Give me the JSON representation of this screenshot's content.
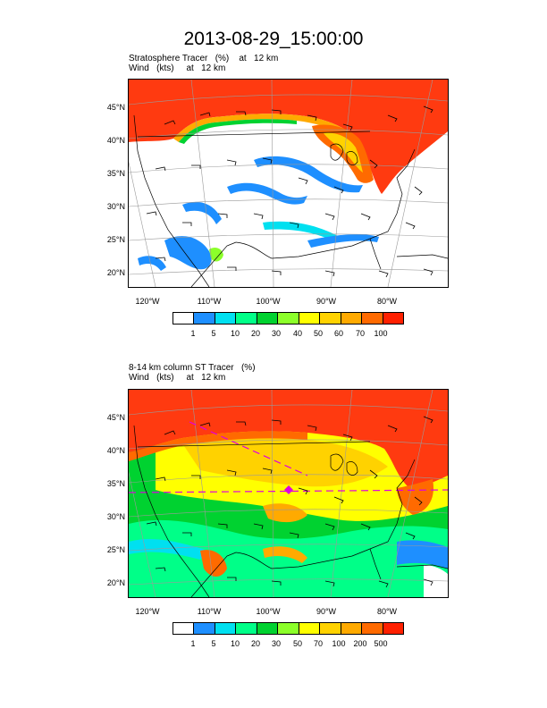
{
  "title": "2013-08-29_15:00:00",
  "colors": {
    "levels": [
      "#ffffff",
      "#1e8fff",
      "#00e0f0",
      "#00ff88",
      "#00d230",
      "#8cff2a",
      "#ffff00",
      "#ffd200",
      "#ffaa00",
      "#ff6a00",
      "#ff2000"
    ]
  },
  "panels": [
    {
      "line1": "Stratosphere Tracer   (%)    at   12 km",
      "line2": "Wind   (kts)     at   12 km",
      "lat_labels": [
        "45°N",
        "40°N",
        "35°N",
        "30°N",
        "25°N",
        "20°N"
      ],
      "lon_labels": [
        "120°W",
        "110°W",
        "100°W",
        "90°W",
        "80°W"
      ],
      "colorbar_labels": [
        "1",
        "5",
        "10",
        "20",
        "30",
        "40",
        "50",
        "60",
        "70",
        "100"
      ]
    },
    {
      "line1": "8-14 km column ST Tracer   (%)",
      "line2": "Wind   (kts)     at   12 km",
      "lat_labels": [
        "45°N",
        "40°N",
        "35°N",
        "30°N",
        "25°N",
        "20°N"
      ],
      "lon_labels": [
        "120°W",
        "110°W",
        "100°W",
        "90°W",
        "80°W"
      ],
      "colorbar_labels": [
        "1",
        "5",
        "10",
        "20",
        "30",
        "50",
        "70",
        "100",
        "200",
        "500"
      ]
    }
  ]
}
